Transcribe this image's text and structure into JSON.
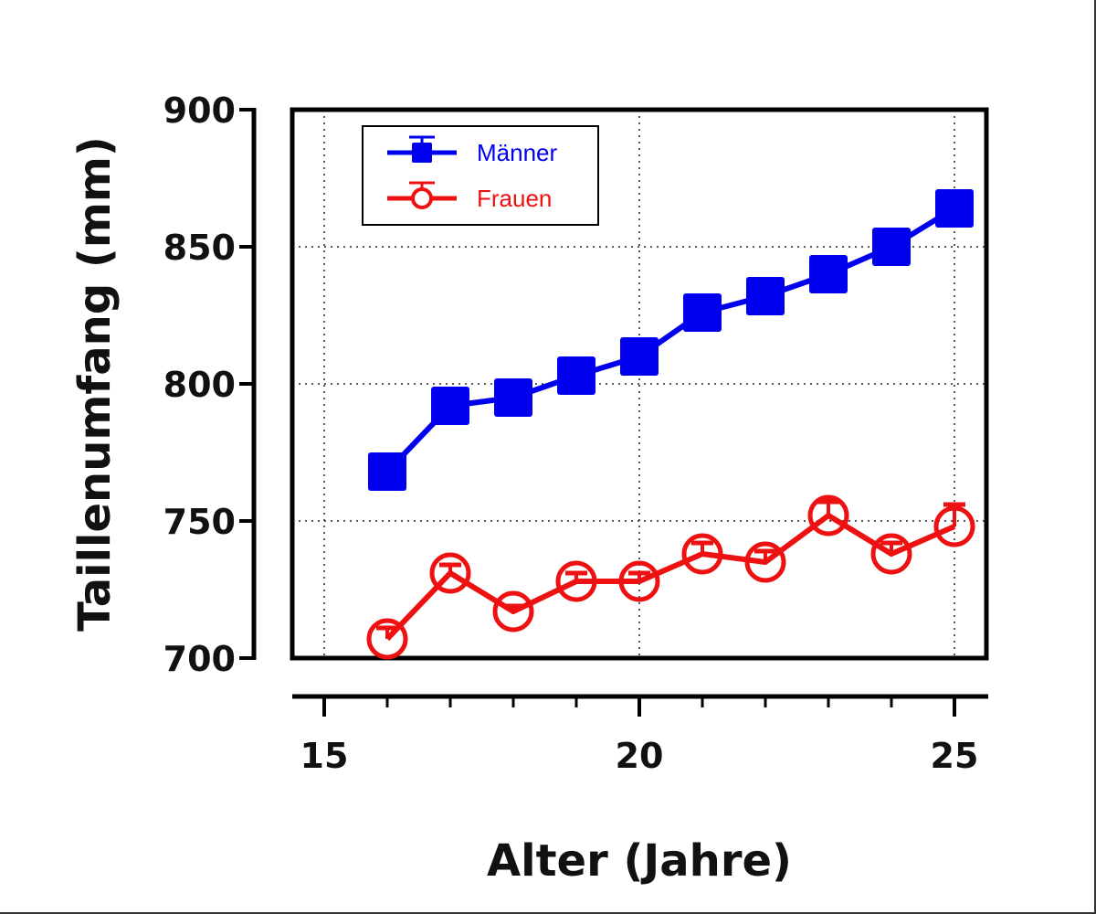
{
  "chart_data": {
    "type": "line",
    "title": "",
    "xlabel": "Alter (Jahre)",
    "ylabel": "Taillenumfang (mm)",
    "xlim": [
      15,
      25
    ],
    "ylim": [
      700,
      900
    ],
    "xticks": [
      15,
      20,
      25
    ],
    "xtick_labels": [
      "15",
      "20",
      "25"
    ],
    "xminor_ticks": [
      16,
      17,
      18,
      19,
      21,
      22,
      23,
      24
    ],
    "yticks": [
      700,
      750,
      800,
      850,
      900
    ],
    "ytick_labels": [
      "700",
      "750",
      "800",
      "850",
      "900"
    ],
    "grid": true,
    "legend_position": "top-left",
    "x": [
      16,
      17,
      18,
      19,
      20,
      21,
      22,
      23,
      24,
      25
    ],
    "series": [
      {
        "name": "Männer",
        "color": "#0000ee",
        "marker": "filled-square",
        "values": [
          768,
          792,
          795,
          803,
          810,
          826,
          832,
          840,
          850,
          864
        ],
        "error_upper": [
          2,
          2,
          2,
          2,
          2,
          2,
          2,
          2,
          2,
          2
        ]
      },
      {
        "name": "Frauen",
        "color": "#ee1111",
        "marker": "open-circle",
        "values": [
          707,
          731,
          717,
          728,
          728,
          738,
          735,
          752,
          738,
          748
        ],
        "error_upper": [
          4,
          3,
          2,
          3,
          3,
          4,
          4,
          5,
          4,
          8
        ]
      }
    ]
  }
}
